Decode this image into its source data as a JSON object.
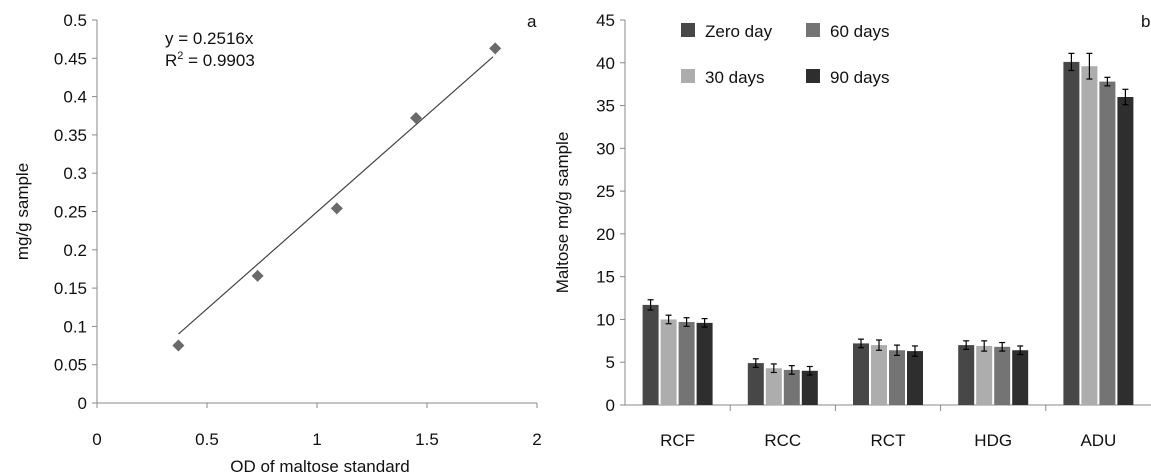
{
  "chart_data": [
    {
      "type": "scatter",
      "panel_label": "a",
      "xlabel": "OD of maltose standard",
      "ylabel": "mg/g sample",
      "xlim": [
        0,
        2
      ],
      "ylim": [
        0,
        0.5
      ],
      "x_ticks": [
        "0",
        "0.5",
        "1",
        "1.5",
        "2"
      ],
      "y_ticks": [
        "0",
        "0.05",
        "0.1",
        "0.15",
        "0.2",
        "0.25",
        "0.3",
        "0.35",
        "0.4",
        "0.45",
        "0.5"
      ],
      "points": [
        {
          "x": 0.37,
          "y": 0.075
        },
        {
          "x": 0.73,
          "y": 0.166
        },
        {
          "x": 1.09,
          "y": 0.254
        },
        {
          "x": 1.45,
          "y": 0.372
        },
        {
          "x": 1.81,
          "y": 0.463
        }
      ],
      "trendline": {
        "x_start": 0.37,
        "y_start": 0.09,
        "x_end": 1.8,
        "y_end": 0.452
      },
      "annotations": {
        "equation": "y = 0.2516x",
        "r2_prefix": "R",
        "r2_sup": "2",
        "r2_value": " = 0.9903"
      },
      "grid": false,
      "marker_color": "#6a6a6a",
      "line_color": "#444444"
    },
    {
      "type": "bar",
      "panel_label": "b",
      "xlabel": "",
      "ylabel": "Maltose mg/g sample",
      "ylim": [
        0,
        45
      ],
      "y_ticks": [
        "0",
        "5",
        "10",
        "15",
        "20",
        "25",
        "30",
        "35",
        "40",
        "45"
      ],
      "categories": [
        "RCF",
        "RCC",
        "RCT",
        "HDG",
        "ADU"
      ],
      "legend_position": "top-left",
      "grid": false,
      "series": [
        {
          "name": "Zero day",
          "color": "#474747",
          "values": [
            11.7,
            4.9,
            7.2,
            7.0,
            40.1
          ],
          "errors": [
            0.6,
            0.5,
            0.5,
            0.5,
            1.0
          ]
        },
        {
          "name": "30 days",
          "color": "#adadad",
          "values": [
            10.0,
            4.3,
            7.0,
            6.9,
            39.6
          ],
          "errors": [
            0.5,
            0.5,
            0.6,
            0.6,
            1.5
          ]
        },
        {
          "name": "60 days",
          "color": "#747474",
          "values": [
            9.7,
            4.1,
            6.4,
            6.8,
            37.8
          ],
          "errors": [
            0.5,
            0.5,
            0.6,
            0.5,
            0.5
          ]
        },
        {
          "name": "90 days",
          "color": "#2e2e2e",
          "values": [
            9.6,
            4.0,
            6.3,
            6.4,
            36.0
          ],
          "errors": [
            0.5,
            0.5,
            0.6,
            0.5,
            0.9
          ]
        }
      ]
    }
  ]
}
